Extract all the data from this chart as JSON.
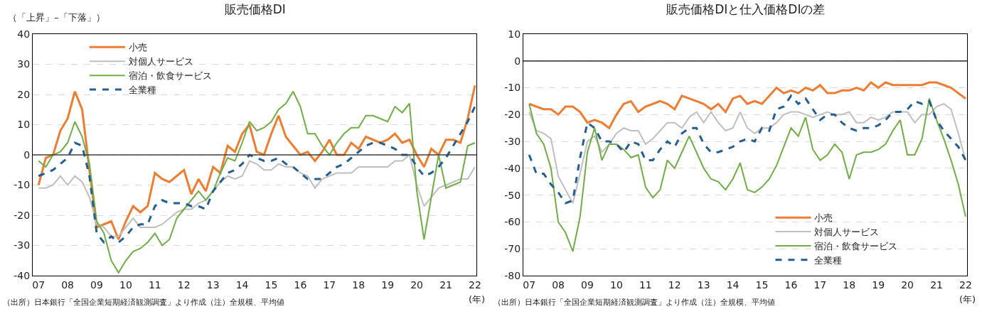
{
  "chart_data": [
    {
      "type": "line",
      "title": "販売価格DI",
      "ylabel": "（「上昇」–「下落」）",
      "xlabel": "(年)",
      "categories": [
        "07",
        null,
        null,
        null,
        "08",
        null,
        null,
        null,
        "09",
        null,
        null,
        null,
        "10",
        null,
        null,
        null,
        "11",
        null,
        null,
        null,
        "12",
        null,
        null,
        null,
        "13",
        null,
        null,
        null,
        "14",
        null,
        null,
        null,
        "15",
        null,
        null,
        null,
        "16",
        null,
        null,
        null,
        "17",
        null,
        null,
        null,
        "18",
        null,
        null,
        null,
        "19",
        null,
        null,
        null,
        "20",
        null,
        null,
        null,
        "21",
        null,
        null,
        null,
        "22"
      ],
      "series": [
        {
          "name": "小売",
          "color": "#ed7d31",
          "values": [
            -10,
            -1,
            0,
            8,
            12,
            21,
            15,
            -5,
            -24,
            -23,
            -22,
            -28,
            -22,
            -17,
            -19,
            -17,
            -6,
            -8,
            -9,
            -7,
            -5,
            -13,
            -8,
            -12,
            -4,
            -6,
            3,
            1,
            7,
            10,
            1,
            0,
            7,
            13,
            6,
            3,
            0,
            1,
            -2,
            1,
            5,
            0,
            0,
            4,
            2,
            6,
            5,
            4,
            5,
            7,
            4,
            5,
            0,
            -4,
            2,
            0,
            5,
            5,
            4,
            12,
            23
          ]
        },
        {
          "name": "対個人サービス",
          "color": "#bfbfbf",
          "values": [
            -11,
            -11,
            -10,
            -7,
            -10,
            -7,
            -9,
            -14,
            -23,
            -24,
            -27,
            -27,
            -24,
            -21,
            -24,
            -24,
            -24,
            -23,
            -21,
            -19,
            -18,
            -18,
            -16,
            -15,
            -12,
            -9,
            -7,
            -8,
            -7,
            -2,
            -3,
            -5,
            -5,
            -3,
            -4,
            -4,
            -6,
            -7,
            -11,
            -8,
            -7,
            -6,
            -6,
            -6,
            -4,
            -4,
            -4,
            -4,
            -4,
            -2,
            -2,
            0,
            -10,
            -17,
            -14,
            -11,
            -10,
            -9,
            -8,
            -8,
            -4
          ]
        },
        {
          "name": "宿泊・飲食サービス",
          "color": "#70ad47",
          "values": [
            -2,
            -4,
            0,
            1,
            4,
            11,
            6,
            -3,
            -22,
            -26,
            -35,
            -39,
            -35,
            -32,
            -31,
            -29,
            -26,
            -30,
            -28,
            -21,
            -18,
            -15,
            -12,
            -15,
            -12,
            -6,
            -1,
            -2,
            4,
            11,
            8,
            9,
            11,
            15,
            17,
            21,
            16,
            7,
            7,
            3,
            0,
            4,
            7,
            9,
            9,
            13,
            13,
            12,
            11,
            16,
            14,
            17,
            -12,
            -28,
            -14,
            0,
            -11,
            -10,
            -9,
            3,
            4
          ]
        },
        {
          "name": "全業種",
          "color": "#255e91",
          "line_style": "dashed",
          "values": [
            -7,
            -6,
            -5,
            -3,
            -1,
            4,
            3,
            -7,
            -26,
            -29,
            -27,
            -29,
            -27,
            -24,
            -23,
            -23,
            -17,
            -15,
            -16,
            -16,
            -16,
            -17,
            -17,
            -18,
            -12,
            -9,
            -6,
            -5,
            -3,
            0,
            -1,
            -2,
            -2,
            -1,
            -3,
            -4,
            -6,
            -8,
            -8,
            -8,
            -6,
            -4,
            -3,
            -1,
            1,
            3,
            4,
            4,
            3,
            2,
            0,
            0,
            -4,
            -7,
            -6,
            -4,
            -1,
            3,
            7,
            11,
            16
          ]
        }
      ],
      "ylim": [
        -40,
        40
      ],
      "yticks": [
        -40,
        -30,
        -20,
        -10,
        0,
        10,
        20,
        30,
        40
      ],
      "grid": "y",
      "legend": "top left",
      "ref_lines": [
        {
          "axis": "y",
          "value": 0,
          "color": "#404040"
        }
      ],
      "annotations": [
        "（出所）日本銀行「全国企業短期経済観測調査」より作成（注）全規模、平均値"
      ]
    },
    {
      "type": "line",
      "title": "販売価格DIと仕入価格DIの差",
      "xlabel": "(年)",
      "categories": [
        "07",
        null,
        null,
        null,
        "08",
        null,
        null,
        null,
        "09",
        null,
        null,
        null,
        "10",
        null,
        null,
        null,
        "11",
        null,
        null,
        null,
        "12",
        null,
        null,
        null,
        "13",
        null,
        null,
        null,
        "14",
        null,
        null,
        null,
        "15",
        null,
        null,
        null,
        "16",
        null,
        null,
        null,
        "17",
        null,
        null,
        null,
        "18",
        null,
        null,
        null,
        "19",
        null,
        null,
        null,
        "20",
        null,
        null,
        null,
        "21",
        null,
        null,
        null,
        "22"
      ],
      "series": [
        {
          "name": "小売",
          "color": "#ed7d31",
          "values": [
            -16,
            -17,
            -18,
            -18,
            -20,
            -17,
            -17,
            -19,
            -23,
            -22,
            -23,
            -25,
            -20,
            -16,
            -15,
            -19,
            -17,
            -16,
            -15,
            -16,
            -18,
            -13,
            -14,
            -15,
            -16,
            -18,
            -16,
            -19,
            -14,
            -13,
            -16,
            -15,
            -16,
            -13,
            -10,
            -12,
            -11,
            -12,
            -10,
            -11,
            -9,
            -12,
            -12,
            -11,
            -11,
            -10,
            -11,
            -8,
            -10,
            -8,
            -9,
            -9,
            -9,
            -9,
            -9,
            -8,
            -8,
            -9,
            -10,
            -12,
            -14
          ]
        },
        {
          "name": "対個人サービス",
          "color": "#bfbfbf",
          "values": [
            -19,
            -26,
            -27,
            -29,
            -43,
            -48,
            -53,
            -42,
            -30,
            -28,
            -34,
            -31,
            -27,
            -25,
            -26,
            -26,
            -31,
            -29,
            -26,
            -23,
            -23,
            -25,
            -21,
            -19,
            -23,
            -19,
            -23,
            -26,
            -25,
            -19,
            -25,
            -27,
            -25,
            -25,
            -23,
            -20,
            -19,
            -19,
            -20,
            -21,
            -20,
            -19,
            -20,
            -20,
            -19,
            -23,
            -23,
            -21,
            -22,
            -21,
            -19,
            -19,
            -19,
            -23,
            -20,
            -20,
            -17,
            -16,
            -18,
            -27,
            -37
          ]
        },
        {
          "name": "宿泊・飲食サービス",
          "color": "#70ad47",
          "values": [
            -16,
            -27,
            -31,
            -40,
            -60,
            -64,
            -71,
            -58,
            -34,
            -25,
            -37,
            -31,
            -31,
            -33,
            -36,
            -35,
            -47,
            -51,
            -48,
            -37,
            -40,
            -34,
            -28,
            -34,
            -40,
            -44,
            -45,
            -48,
            -44,
            -38,
            -48,
            -49,
            -47,
            -44,
            -39,
            -32,
            -25,
            -28,
            -21,
            -33,
            -37,
            -35,
            -31,
            -34,
            -44,
            -35,
            -34,
            -34,
            -33,
            -31,
            -26,
            -22,
            -35,
            -35,
            -29,
            -14,
            -22,
            -29,
            -37,
            -46,
            -58
          ]
        },
        {
          "name": "全業種",
          "color": "#255e91",
          "line_style": "dashed",
          "values": [
            -35,
            -42,
            -42,
            -46,
            -49,
            -53,
            -52,
            -36,
            -23,
            -25,
            -30,
            -30,
            -31,
            -34,
            -30,
            -31,
            -37,
            -37,
            -33,
            -30,
            -32,
            -27,
            -25,
            -25,
            -31,
            -34,
            -34,
            -33,
            -32,
            -30,
            -29,
            -30,
            -25,
            -26,
            -18,
            -17,
            -13,
            -16,
            -14,
            -18,
            -22,
            -20,
            -20,
            -23,
            -25,
            -26,
            -25,
            -25,
            -24,
            -22,
            -19,
            -19,
            -18,
            -15,
            -16,
            -15,
            -22,
            -26,
            -29,
            -32,
            -37
          ]
        }
      ],
      "ylim": [
        -80,
        10
      ],
      "yticks": [
        -80,
        -70,
        -60,
        -50,
        -40,
        -30,
        -20,
        -10,
        0,
        10
      ],
      "grid": "y",
      "legend": "bottom right",
      "ref_lines": [
        {
          "axis": "y",
          "value": 0,
          "color": "#000000"
        }
      ],
      "annotations": [
        "（出所）日本銀行「全国企業短期経済観測調査」より作成（注）全規模、平均値"
      ]
    }
  ]
}
